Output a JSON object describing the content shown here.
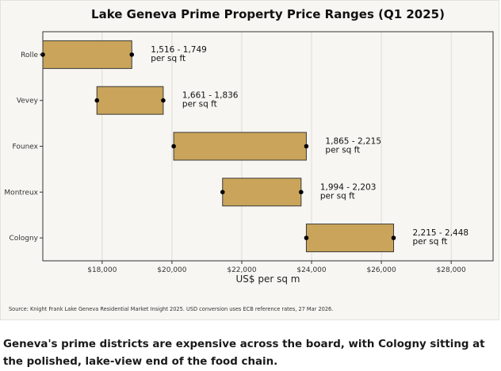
{
  "chart_data": {
    "type": "range-bar",
    "title": "Lake Geneva Prime Property Price Ranges (Q1 2025)",
    "xlabel": "US$ per sq m",
    "ylabel": "",
    "xlim": [
      16300,
      29200
    ],
    "xticks": [
      18000,
      20000,
      22000,
      24000,
      26000,
      28000
    ],
    "xtick_labels": [
      "$18,000",
      "$20,000",
      "$22,000",
      "$24,000",
      "$26,000",
      "$28,000"
    ],
    "grid": true,
    "bar_color": "#c9a45a",
    "bar_edge_color": "#3a3a3a",
    "marker_color": "#000000",
    "categories": [
      "Rolle",
      "Vevey",
      "Founex",
      "Montreux",
      "Cologny"
    ],
    "ranges_usd_per_sqm": [
      [
        16300,
        18850
      ],
      [
        17850,
        19750
      ],
      [
        20050,
        23850
      ],
      [
        21450,
        23700
      ],
      [
        23850,
        26350
      ]
    ],
    "annotations": [
      {
        "range": "1,516 - 1,749",
        "unit": "per sq ft"
      },
      {
        "range": "1,661 - 1,836",
        "unit": "per sq ft"
      },
      {
        "range": "1,865 - 2,215",
        "unit": "per sq ft"
      },
      {
        "range": "1,994 - 2,203",
        "unit": "per sq ft"
      },
      {
        "range": "2,215 - 2,448",
        "unit": "per sq ft"
      }
    ],
    "source": "Source: Knight Frank Lake Geneva Residential Market Insight 2025. USD conversion uses ECB reference rates, 27 Mar 2026."
  },
  "caption": "Geneva's prime districts are expensive across the board, with Cologny sitting at the polished, lake-view end of the food chain."
}
